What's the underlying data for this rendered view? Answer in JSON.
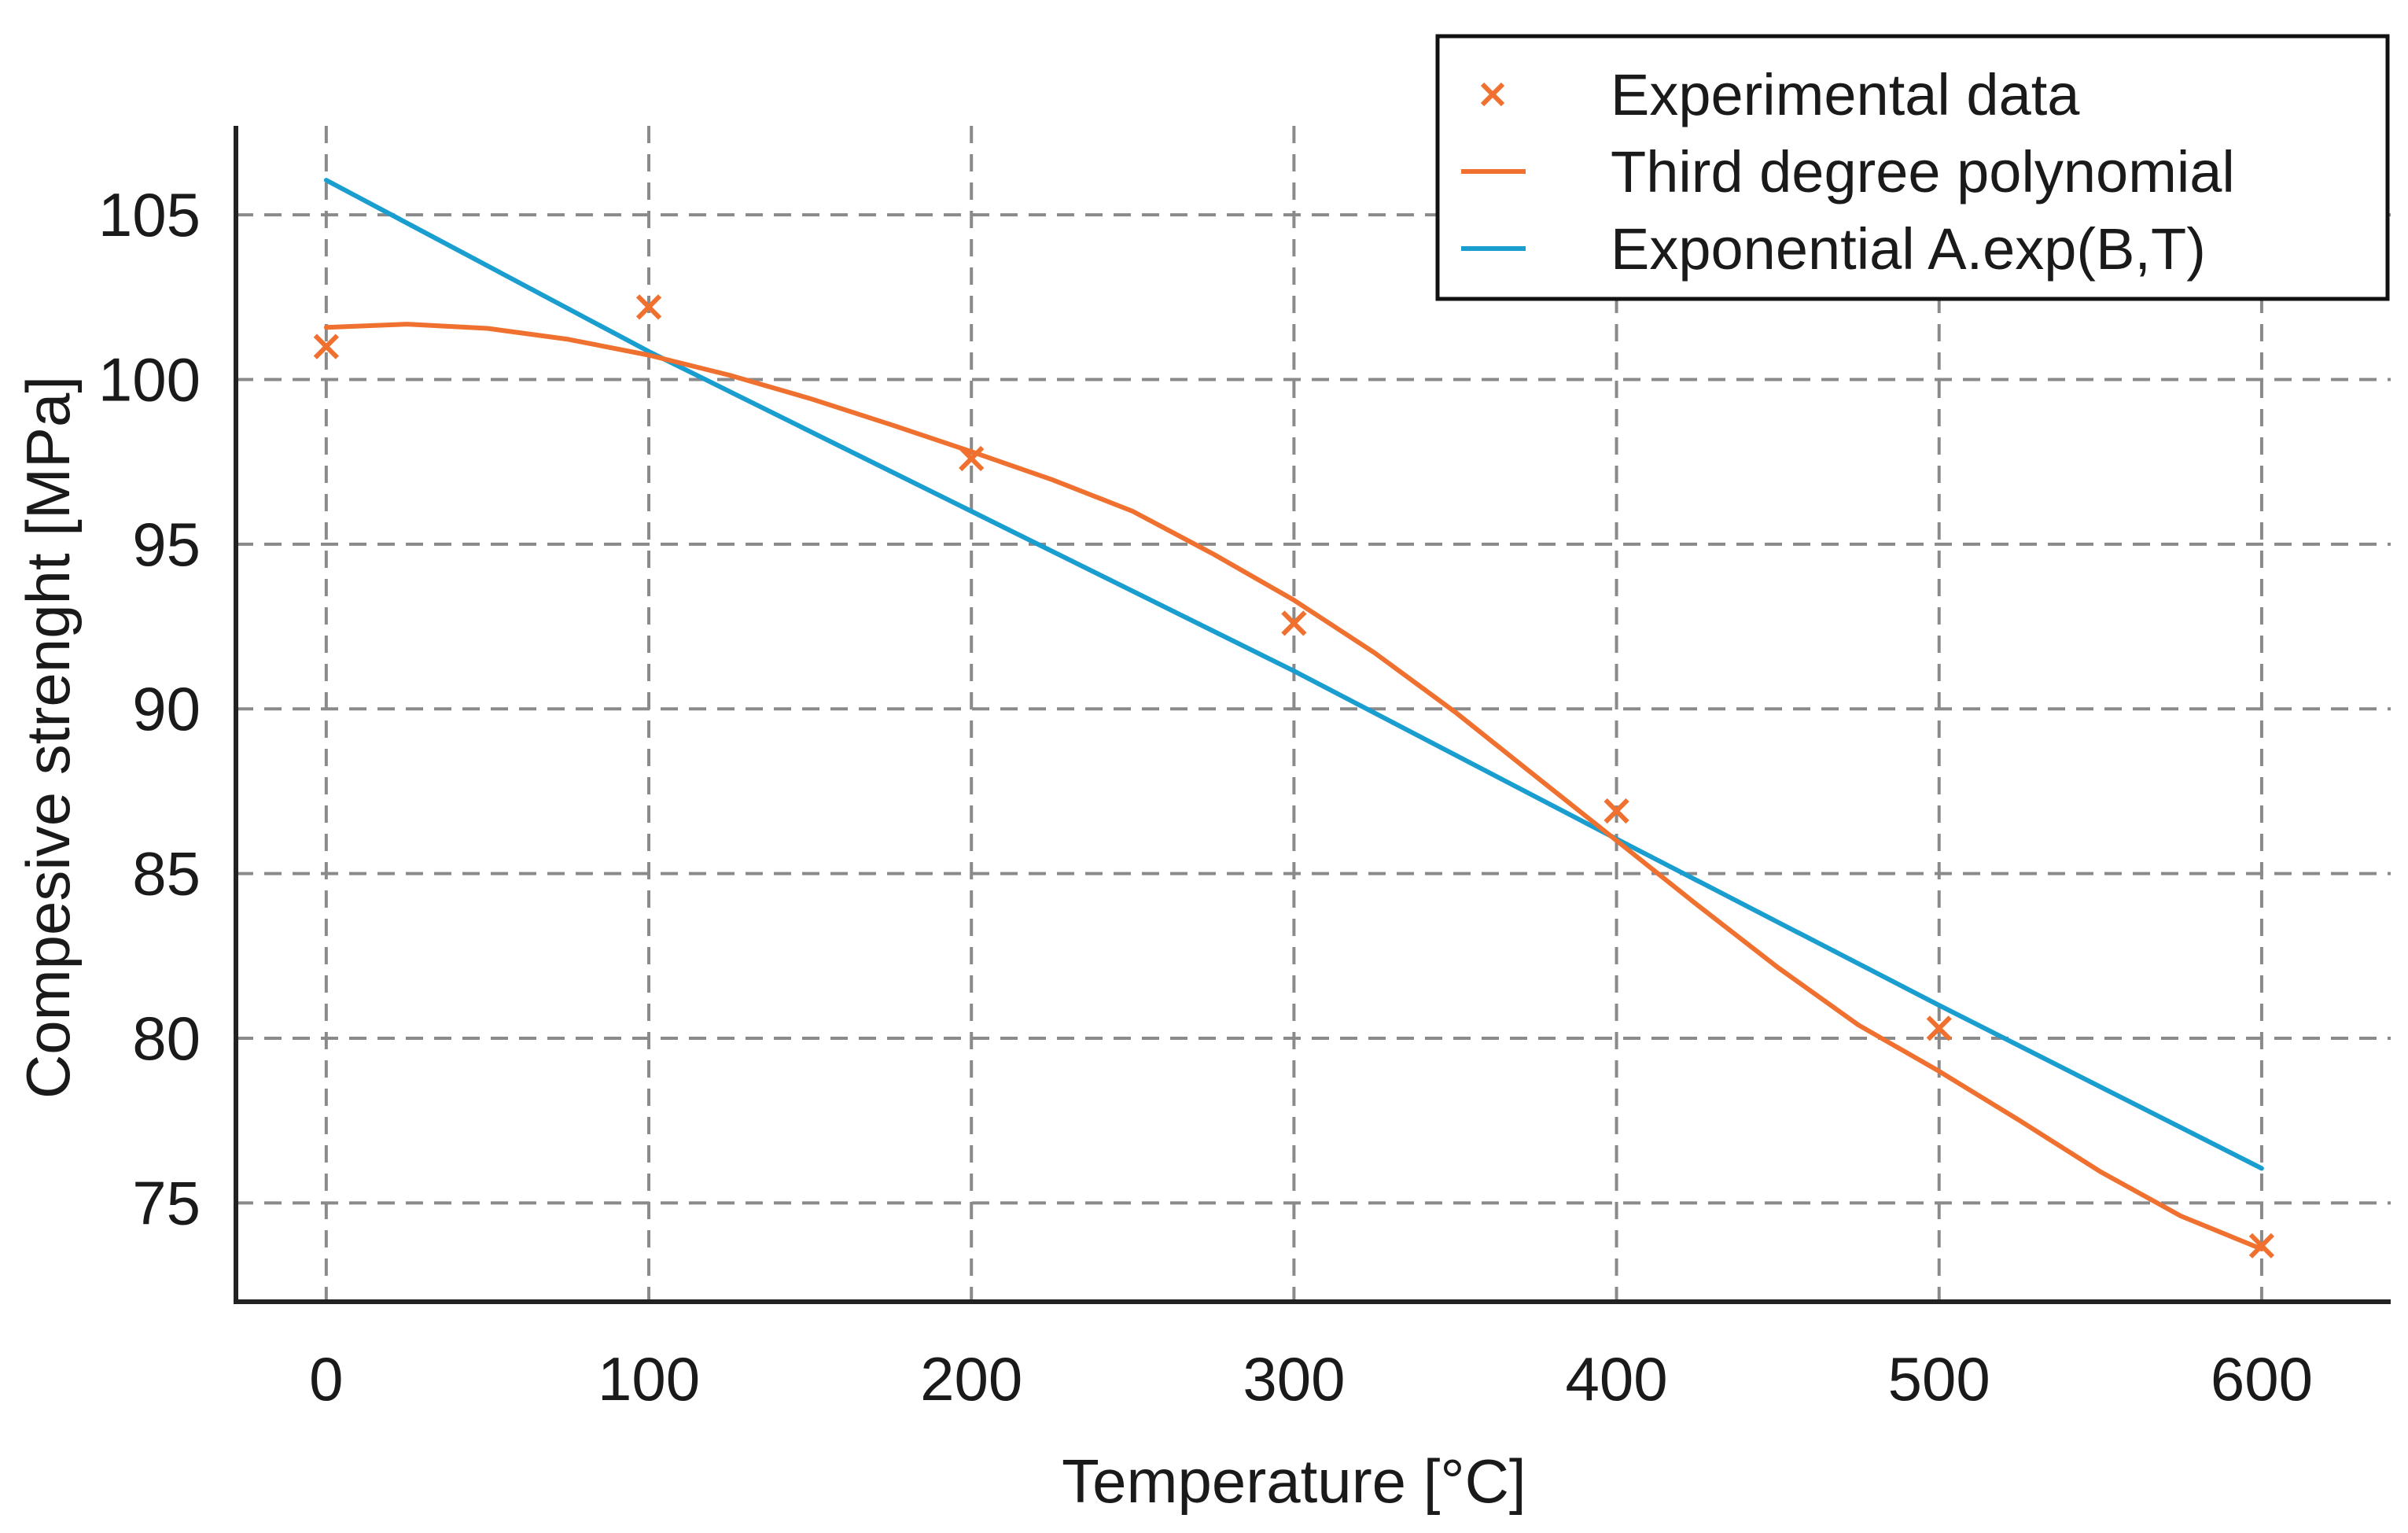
{
  "chart_data": {
    "type": "line",
    "title": "",
    "xlabel": "Temperature [°C]",
    "ylabel": "Compesive strenght [MPa]",
    "xlim": [
      -28,
      640
    ],
    "ylim": [
      72.0,
      107.7
    ],
    "x_ticks": [
      0,
      100,
      200,
      300,
      400,
      500,
      600
    ],
    "x_tick_labels": [
      "0",
      "100",
      "200",
      "300",
      "400",
      "500",
      "600"
    ],
    "y_ticks": [
      75,
      80,
      85,
      90,
      95,
      100,
      105
    ],
    "y_tick_labels": [
      "75",
      "80",
      "85",
      "90",
      "95",
      "100",
      "105"
    ],
    "grid": true,
    "legend_position": "top-right",
    "colors": {
      "experimental": "#f07030",
      "polynomial": "#f07030",
      "exponential": "#1a9ed0",
      "grid": "#8a8a8a",
      "axis": "#222222"
    },
    "series": [
      {
        "name": "Experimental data",
        "kind": "scatter",
        "marker": "x",
        "x": [
          0,
          100,
          200,
          300,
          400,
          500,
          600
        ],
        "y": [
          101.0,
          102.2,
          97.6,
          92.6,
          86.9,
          80.3,
          73.7
        ]
      },
      {
        "name": "Third degree polynomial",
        "kind": "line",
        "x": [
          0,
          25,
          50,
          75,
          100,
          125,
          150,
          175,
          200,
          225,
          250,
          275,
          300,
          325,
          350,
          375,
          400,
          425,
          450,
          475,
          500,
          525,
          550,
          575,
          600
        ],
        "y": [
          101.58,
          101.68,
          101.55,
          101.22,
          100.74,
          100.13,
          99.42,
          98.63,
          97.81,
          96.96,
          96.0,
          94.7,
          93.3,
          91.7,
          89.9,
          87.95,
          86.0,
          84.05,
          82.15,
          80.4,
          79.0,
          77.5,
          75.95,
          74.6,
          73.6
        ]
      },
      {
        "name": "Exponential A.exp(B,T)",
        "kind": "line",
        "x": [
          0,
          100,
          200,
          300,
          400,
          500,
          600
        ],
        "y": [
          106.05,
          100.85,
          96.0,
          91.15,
          86.05,
          81.0,
          76.05
        ]
      }
    ]
  }
}
